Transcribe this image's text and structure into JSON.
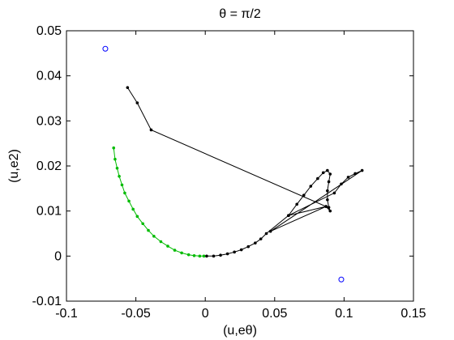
{
  "chart_data": {
    "type": "scatter",
    "title": "θ = π/2",
    "xlabel": "(u,eθ)",
    "ylabel": "(u,e2)",
    "xlim": [
      -0.1,
      0.15
    ],
    "ylim": [
      -0.01,
      0.05
    ],
    "xticks": [
      -0.1,
      -0.05,
      0,
      0.05,
      0.1,
      0.15
    ],
    "xtick_labels": [
      "-0.1",
      "-0.05",
      "0",
      "0.05",
      "0.1",
      "0.15"
    ],
    "yticks": [
      -0.01,
      0,
      0.01,
      0.02,
      0.03,
      0.04,
      0.05
    ],
    "ytick_labels": [
      "-0.01",
      "0",
      "0.01",
      "0.02",
      "0.03",
      "0.04",
      "0.05"
    ],
    "grid": false,
    "colors": {
      "green": "#00bb00",
      "black": "#000000",
      "blue": "#0000ff"
    },
    "series": [
      {
        "style": "green-dots-line",
        "color": "#00bb00",
        "points": [
          [
            -0.066,
            0.024
          ],
          [
            -0.065,
            0.0215
          ],
          [
            -0.0635,
            0.0195
          ],
          [
            -0.062,
            0.0177
          ],
          [
            -0.06,
            0.0158
          ],
          [
            -0.058,
            0.014
          ],
          [
            -0.055,
            0.0122
          ],
          [
            -0.052,
            0.0104
          ],
          [
            -0.049,
            0.0088
          ],
          [
            -0.045,
            0.0072
          ],
          [
            -0.041,
            0.0057
          ],
          [
            -0.037,
            0.0044
          ],
          [
            -0.032,
            0.0032
          ],
          [
            -0.027,
            0.0022
          ],
          [
            -0.022,
            0.0013
          ],
          [
            -0.017,
            0.0007
          ],
          [
            -0.012,
            0.0003
          ],
          [
            -0.008,
            0.0001
          ],
          [
            -0.004,
            0.0
          ],
          [
            -0.001,
            0.0
          ]
        ]
      },
      {
        "style": "black-dots-line",
        "color": "#000000",
        "points": [
          [
            0.001,
            0.0
          ],
          [
            0.006,
            0.0
          ],
          [
            0.011,
            0.0002
          ],
          [
            0.016,
            0.0005
          ],
          [
            0.021,
            0.0009
          ],
          [
            0.026,
            0.0014
          ],
          [
            0.031,
            0.0021
          ],
          [
            0.036,
            0.0029
          ],
          [
            0.04,
            0.0038
          ],
          [
            0.044,
            0.005
          ],
          [
            0.06,
            0.009
          ],
          [
            0.066,
            0.0115
          ],
          [
            0.071,
            0.0135
          ],
          [
            0.076,
            0.0155
          ],
          [
            0.081,
            0.0172
          ],
          [
            0.085,
            0.0185
          ],
          [
            0.088,
            0.019
          ],
          [
            0.09,
            0.0182
          ],
          [
            0.089,
            0.0165
          ],
          [
            0.088,
            0.0145
          ],
          [
            0.088,
            0.0125
          ],
          [
            0.089,
            0.0108
          ],
          [
            0.09,
            0.01
          ],
          [
            0.087,
            0.011
          ],
          [
            0.06,
            0.009
          ],
          [
            0.093,
            0.014
          ],
          [
            0.098,
            0.016
          ],
          [
            0.103,
            0.0175
          ],
          [
            0.108,
            0.0183
          ],
          [
            0.113,
            0.019
          ],
          [
            0.047,
            0.0055
          ],
          [
            0.087,
            0.011
          ],
          [
            -0.039,
            0.028
          ],
          [
            -0.049,
            0.034
          ],
          [
            -0.056,
            0.0374
          ]
        ]
      },
      {
        "style": "blue-circles",
        "color": "#0000ff",
        "points": [
          [
            -0.072,
            0.046
          ],
          [
            0.098,
            -0.0052
          ]
        ]
      }
    ]
  }
}
